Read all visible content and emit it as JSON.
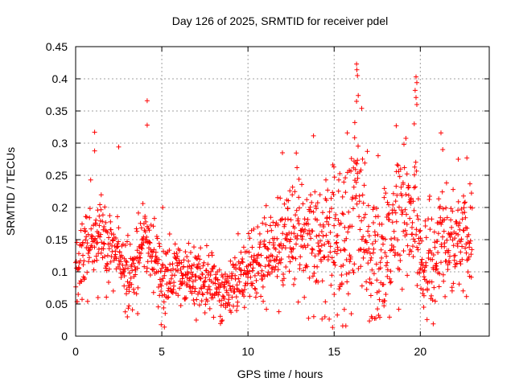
{
  "chart_data": {
    "type": "scatter",
    "title": "Day 126 of 2025, SRMTID for receiver pdel",
    "xlabel": "GPS time / hours",
    "ylabel": "SRMTID / TECUs",
    "xlim": [
      0,
      24
    ],
    "ylim": [
      0,
      0.45
    ],
    "grid": true,
    "marker": "+",
    "color": "#ff0000",
    "xticks": [
      0,
      5,
      10,
      15,
      20
    ],
    "xtick_labels": [
      "0",
      "5",
      "10",
      "15",
      "20"
    ],
    "yticks": [
      0,
      0.05,
      0.1,
      0.15,
      0.2,
      0.25,
      0.3,
      0.35,
      0.4,
      0.45
    ],
    "ytick_labels": [
      "0",
      "0.05",
      "0.1",
      "0.15",
      "0.2",
      "0.25",
      "0.3",
      "0.35",
      "0.4",
      "0.45"
    ],
    "trend_profile": [
      [
        0.0,
        0.11
      ],
      [
        0.5,
        0.12
      ],
      [
        1.0,
        0.15
      ],
      [
        1.5,
        0.16
      ],
      [
        2.0,
        0.14
      ],
      [
        2.5,
        0.12
      ],
      [
        3.0,
        0.09
      ],
      [
        3.5,
        0.11
      ],
      [
        4.0,
        0.16
      ],
      [
        4.5,
        0.12
      ],
      [
        5.0,
        0.1
      ],
      [
        6.0,
        0.1
      ],
      [
        7.0,
        0.09
      ],
      [
        8.0,
        0.08
      ],
      [
        8.7,
        0.065
      ],
      [
        9.5,
        0.09
      ],
      [
        10.5,
        0.11
      ],
      [
        11.5,
        0.12
      ],
      [
        12.0,
        0.15
      ],
      [
        13.0,
        0.17
      ],
      [
        14.0,
        0.16
      ],
      [
        15.0,
        0.14
      ],
      [
        15.7,
        0.15
      ],
      [
        16.3,
        0.22
      ],
      [
        16.8,
        0.15
      ],
      [
        17.5,
        0.12
      ],
      [
        18.2,
        0.14
      ],
      [
        18.7,
        0.18
      ],
      [
        19.2,
        0.2
      ],
      [
        19.6,
        0.22
      ],
      [
        20.0,
        0.13
      ],
      [
        20.5,
        0.11
      ],
      [
        21.5,
        0.14
      ],
      [
        22.5,
        0.15
      ],
      [
        23.0,
        0.16
      ]
    ],
    "spread_profile": [
      [
        0.0,
        0.03
      ],
      [
        5.0,
        0.03
      ],
      [
        8.7,
        0.02
      ],
      [
        12.0,
        0.04
      ],
      [
        16.3,
        0.07
      ],
      [
        19.6,
        0.05
      ],
      [
        23.0,
        0.04
      ]
    ],
    "highlights": [
      {
        "x": 1.1,
        "y": 0.317
      },
      {
        "x": 1.1,
        "y": 0.288
      },
      {
        "x": 2.5,
        "y": 0.294
      },
      {
        "x": 4.15,
        "y": 0.366
      },
      {
        "x": 4.15,
        "y": 0.328
      },
      {
        "x": 5.05,
        "y": 0.2
      },
      {
        "x": 5.15,
        "y": 0.014
      },
      {
        "x": 12.0,
        "y": 0.285
      },
      {
        "x": 16.3,
        "y": 0.423
      },
      {
        "x": 16.32,
        "y": 0.414
      },
      {
        "x": 16.35,
        "y": 0.405
      },
      {
        "x": 16.4,
        "y": 0.374
      },
      {
        "x": 16.3,
        "y": 0.365
      },
      {
        "x": 16.6,
        "y": 0.354
      },
      {
        "x": 16.2,
        "y": 0.332
      },
      {
        "x": 18.6,
        "y": 0.327
      },
      {
        "x": 19.75,
        "y": 0.403
      },
      {
        "x": 19.8,
        "y": 0.394
      },
      {
        "x": 19.7,
        "y": 0.382
      },
      {
        "x": 19.75,
        "y": 0.371
      },
      {
        "x": 19.8,
        "y": 0.36
      },
      {
        "x": 19.65,
        "y": 0.33
      },
      {
        "x": 21.2,
        "y": 0.316
      },
      {
        "x": 21.3,
        "y": 0.29
      },
      {
        "x": 22.7,
        "y": 0.277
      },
      {
        "x": 22.2,
        "y": 0.275
      },
      {
        "x": 1.3,
        "y": 0.06
      },
      {
        "x": 3.0,
        "y": 0.03
      },
      {
        "x": 3.6,
        "y": 0.035
      },
      {
        "x": 7.0,
        "y": 0.025
      },
      {
        "x": 15.0,
        "y": 0.065
      },
      {
        "x": 17.9,
        "y": 0.055
      },
      {
        "x": 20.2,
        "y": 0.045
      }
    ],
    "point_count": 1400,
    "random_seed": 1262025
  }
}
